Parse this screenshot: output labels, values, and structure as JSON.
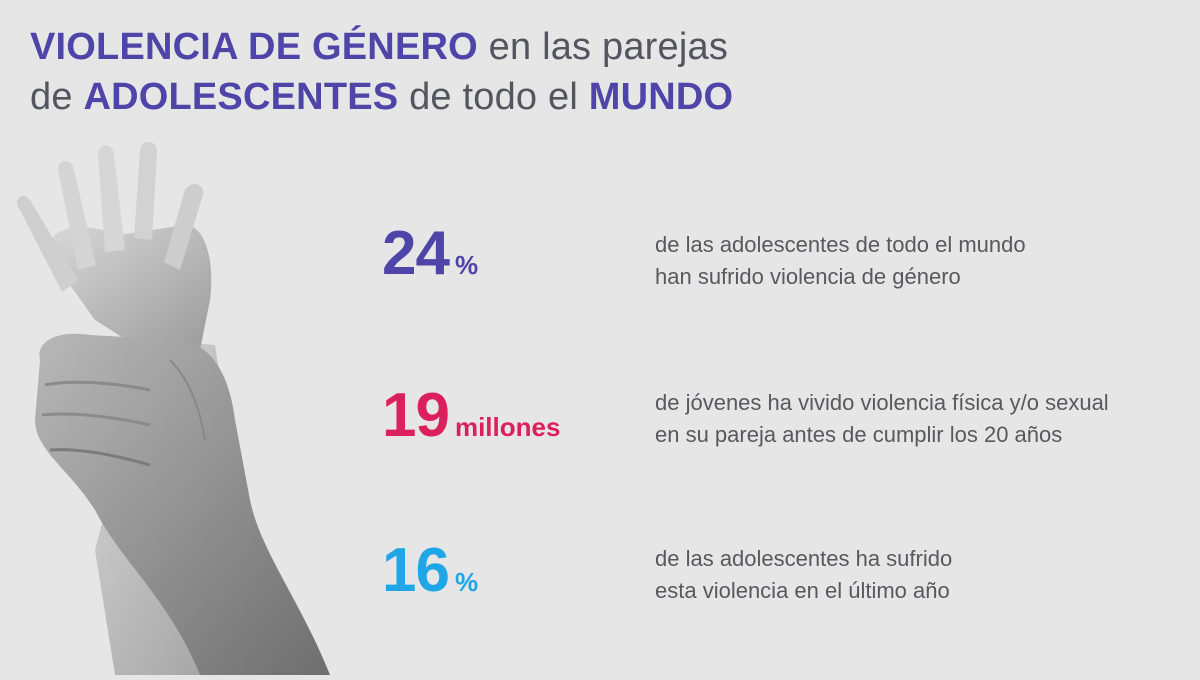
{
  "title": {
    "line1_hl": "VIOLENCIA DE GÉNERO",
    "line1_rest": " en las parejas",
    "line2_pre": "de ",
    "line2_hl1": "ADOLESCENTES",
    "line2_mid": " de todo el ",
    "line2_hl2": "MUNDO"
  },
  "stats": [
    {
      "number": "24",
      "unit": "%",
      "color": "#4f45a8",
      "line1": "de las adolescentes de todo el mundo",
      "line2": "han sufrido violencia de género"
    },
    {
      "number": "19",
      "unit": "millones",
      "color": "#dc1f5d",
      "line1": "de jóvenes ha vivido violencia física y/o sexual",
      "line2": "en su pareja antes de cumplir los 20 años"
    },
    {
      "number": "16",
      "unit": "%",
      "color": "#1ea6e6",
      "line1": "de las adolescentes ha sufrido",
      "line2": "esta violencia en el último año"
    }
  ],
  "image": {
    "icon": "hand-grabbing-wrist-photo"
  }
}
